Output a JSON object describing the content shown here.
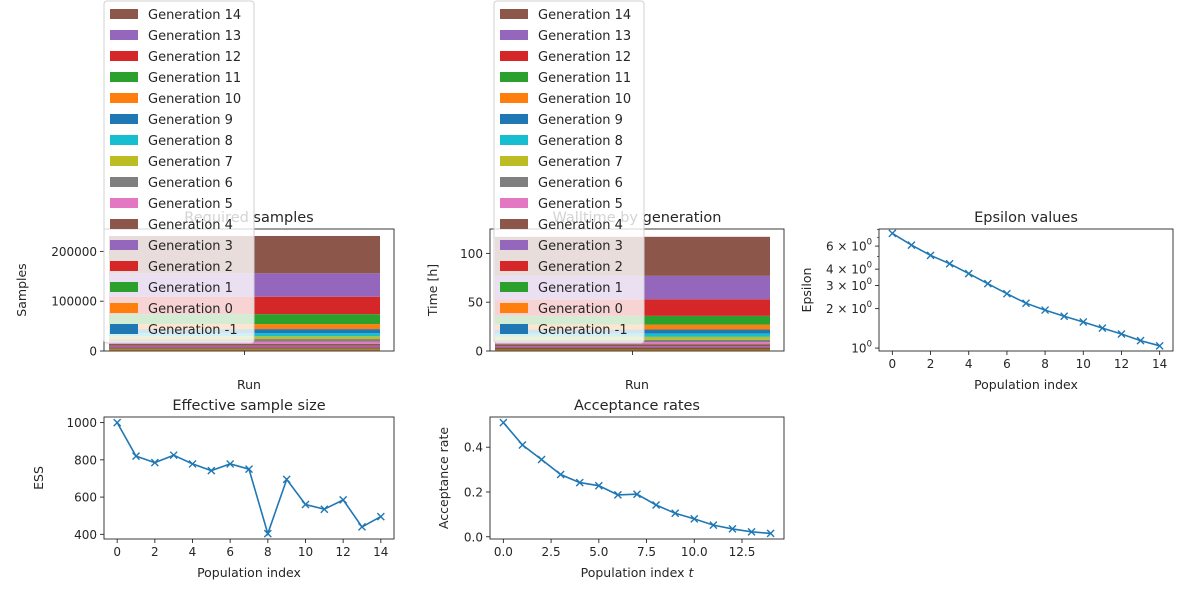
{
  "legend_entries": [
    "Generation 14",
    "Generation 13",
    "Generation 12",
    "Generation 11",
    "Generation 10",
    "Generation 9",
    "Generation 8",
    "Generation 7",
    "Generation 6",
    "Generation 5",
    "Generation 4",
    "Generation 3",
    "Generation 2",
    "Generation 1",
    "Generation 0",
    "Generation -1"
  ],
  "palette": [
    "#1f77b4",
    "#ff7f0e",
    "#2ca02c",
    "#d62728",
    "#9467bd",
    "#8c564b",
    "#e377c2",
    "#7f7f7f",
    "#bcbd22",
    "#17becf"
  ],
  "chart_data": [
    {
      "type": "bar",
      "stacked": true,
      "title": "Required samples",
      "xlabel": "Run",
      "ylabel": "Samples",
      "categories": [
        "Run"
      ],
      "ylim": [
        0,
        245000
      ],
      "yticks": [
        0,
        100000,
        200000
      ],
      "ytick_labels": [
        "0",
        "100000",
        "200000"
      ],
      "legend": "upper-left",
      "series": [
        {
          "name": "Generation -1",
          "values": [
            1000
          ]
        },
        {
          "name": "Generation 0",
          "values": [
            1500
          ]
        },
        {
          "name": "Generation 1",
          "values": [
            2000
          ]
        },
        {
          "name": "Generation 2",
          "values": [
            2800
          ]
        },
        {
          "name": "Generation 3",
          "values": [
            3200
          ]
        },
        {
          "name": "Generation 4",
          "values": [
            4000
          ]
        },
        {
          "name": "Generation 5",
          "values": [
            4500
          ]
        },
        {
          "name": "Generation 6",
          "values": [
            5000
          ]
        },
        {
          "name": "Generation 7",
          "values": [
            5500
          ]
        },
        {
          "name": "Generation 8",
          "values": [
            6500
          ]
        },
        {
          "name": "Generation 9",
          "values": [
            8000
          ]
        },
        {
          "name": "Generation 10",
          "values": [
            10000
          ]
        },
        {
          "name": "Generation 11",
          "values": [
            20000
          ]
        },
        {
          "name": "Generation 12",
          "values": [
            35000
          ]
        },
        {
          "name": "Generation 13",
          "values": [
            47000
          ]
        },
        {
          "name": "Generation 14",
          "values": [
            75000
          ]
        }
      ]
    },
    {
      "type": "bar",
      "stacked": true,
      "title": "Walltime by generation",
      "xlabel": "Run",
      "ylabel": "Time [h]",
      "categories": [
        "Run"
      ],
      "ylim": [
        0,
        125
      ],
      "yticks": [
        0,
        50,
        100
      ],
      "ytick_labels": [
        "0",
        "50",
        "100"
      ],
      "legend": "upper-left",
      "series": [
        {
          "name": "Generation -1",
          "values": [
            0.5
          ]
        },
        {
          "name": "Generation 0",
          "values": [
            0.5
          ]
        },
        {
          "name": "Generation 1",
          "values": [
            1
          ]
        },
        {
          "name": "Generation 2",
          "values": [
            1.5
          ]
        },
        {
          "name": "Generation 3",
          "values": [
            1.5
          ]
        },
        {
          "name": "Generation 4",
          "values": [
            2
          ]
        },
        {
          "name": "Generation 5",
          "values": [
            2
          ]
        },
        {
          "name": "Generation 6",
          "values": [
            2.5
          ]
        },
        {
          "name": "Generation 7",
          "values": [
            3
          ]
        },
        {
          "name": "Generation 8",
          "values": [
            3.5
          ]
        },
        {
          "name": "Generation 9",
          "values": [
            4
          ]
        },
        {
          "name": "Generation 10",
          "values": [
            5
          ]
        },
        {
          "name": "Generation 11",
          "values": [
            9
          ]
        },
        {
          "name": "Generation 12",
          "values": [
            17
          ]
        },
        {
          "name": "Generation 13",
          "values": [
            24
          ]
        },
        {
          "name": "Generation 14",
          "values": [
            40
          ]
        }
      ]
    },
    {
      "type": "line",
      "title": "Epsilon values",
      "xlabel": "Population index",
      "ylabel": "Epsilon",
      "yscale": "log",
      "marker": "x",
      "x": [
        0,
        1,
        2,
        3,
        4,
        5,
        6,
        7,
        8,
        9,
        10,
        11,
        12,
        13,
        14
      ],
      "values": [
        7.5,
        6.1,
        5.1,
        4.4,
        3.7,
        3.1,
        2.6,
        2.2,
        1.95,
        1.75,
        1.58,
        1.42,
        1.28,
        1.14,
        1.04
      ],
      "xlim": [
        -0.7,
        14.7
      ],
      "ylim": [
        0.95,
        8.1
      ],
      "xticks": [
        0,
        2,
        4,
        6,
        8,
        10,
        12,
        14
      ],
      "xtick_labels": [
        "0",
        "2",
        "4",
        "6",
        "8",
        "10",
        "12",
        "14"
      ],
      "ytick_labels": [
        {
          "base": "10",
          "exp": "0"
        },
        {
          "base": "2 × 10",
          "exp": "0"
        },
        {
          "base": "3 × 10",
          "exp": "0"
        },
        {
          "base": "4 × 10",
          "exp": "0"
        },
        {
          "base": "6 × 10",
          "exp": "0"
        }
      ],
      "yticks": [
        1,
        2,
        3,
        4,
        6
      ]
    },
    {
      "type": "line",
      "title": "Effective sample size",
      "xlabel": "Population index",
      "ylabel": "ESS",
      "marker": "x",
      "x": [
        0,
        1,
        2,
        3,
        4,
        5,
        6,
        7,
        8,
        9,
        10,
        11,
        12,
        13,
        14
      ],
      "values": [
        1000,
        820,
        785,
        825,
        778,
        742,
        778,
        750,
        404,
        695,
        560,
        535,
        585,
        440,
        495
      ],
      "xlim": [
        -0.7,
        14.7
      ],
      "ylim": [
        375,
        1030
      ],
      "xticks": [
        0,
        2,
        4,
        6,
        8,
        10,
        12,
        14
      ],
      "xtick_labels": [
        "0",
        "2",
        "4",
        "6",
        "8",
        "10",
        "12",
        "14"
      ],
      "yticks": [
        400,
        600,
        800,
        1000
      ],
      "ytick_labels": [
        "400",
        "600",
        "800",
        "1000"
      ]
    },
    {
      "type": "line",
      "title": "Acceptance rates",
      "xlabel": "Population index t",
      "ylabel": "Acceptance rate",
      "marker": "x",
      "x": [
        0,
        1,
        2,
        3,
        4,
        5,
        6,
        7,
        8,
        9,
        10,
        11,
        12,
        13,
        14
      ],
      "values": [
        0.51,
        0.41,
        0.345,
        0.278,
        0.242,
        0.228,
        0.187,
        0.19,
        0.142,
        0.105,
        0.08,
        0.052,
        0.035,
        0.022,
        0.015
      ],
      "xlim": [
        -0.7,
        14.7
      ],
      "ylim": [
        -0.01,
        0.535
      ],
      "xticks": [
        0,
        2.5,
        5,
        7.5,
        10,
        12.5
      ],
      "xtick_labels": [
        "0.0",
        "2.5",
        "5.0",
        "7.5",
        "10.0",
        "12.5"
      ],
      "yticks": [
        0,
        0.2,
        0.4
      ],
      "ytick_labels": [
        "0.0",
        "0.2",
        "0.4"
      ]
    }
  ]
}
